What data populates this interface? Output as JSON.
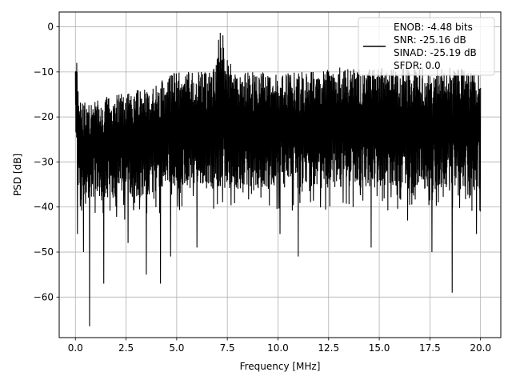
{
  "chart_data": {
    "type": "line",
    "xlabel": "Frequency [MHz]",
    "ylabel": "PSD [dB]",
    "xlim": [
      -0.8,
      21.0
    ],
    "ylim": [
      -69.0,
      3.3
    ],
    "xticks": [
      0.0,
      2.5,
      5.0,
      7.5,
      10.0,
      12.5,
      15.0,
      17.5,
      20.0
    ],
    "xtick_labels": [
      "0.0",
      "2.5",
      "5.0",
      "7.5",
      "10.0",
      "12.5",
      "15.0",
      "17.5",
      "20.0"
    ],
    "yticks": [
      0,
      -10,
      -20,
      -30,
      -40,
      -50,
      -60
    ],
    "ytick_labels": [
      "0",
      "−10",
      "−20",
      "−30",
      "−40",
      "−50",
      "−60"
    ],
    "grid": true,
    "legend_position": "top-right",
    "legend_lines": [
      "ENOB: -4.48 bits",
      "SNR: -25.16 dB",
      "SINAD: -25.19 dB",
      "SFDR: 0.0"
    ],
    "series": [
      {
        "color": "#000000",
        "envelope_x": [
          0.0,
          0.05,
          0.1,
          0.3,
          1.0,
          2.0,
          3.0,
          4.0,
          4.5,
          5.0,
          6.0,
          6.8,
          7.0,
          7.2,
          7.4,
          7.8,
          9.0,
          10.0,
          11.0,
          12.0,
          13.0,
          14.0,
          15.0,
          16.0,
          17.0,
          18.0,
          19.0,
          20.0
        ],
        "upper": [
          -7,
          -3,
          -12,
          -17,
          -16,
          -15,
          -14,
          -13,
          -11,
          -10,
          -10,
          -10,
          -4,
          0,
          -4,
          -10,
          -10,
          -10,
          -10,
          -10,
          -9,
          -9,
          -9,
          -9,
          -9,
          -9,
          -9,
          -10
        ],
        "lower": [
          -20,
          -30,
          -40,
          -38,
          -38,
          -38,
          -38,
          -37,
          -36,
          -36,
          -36,
          -36,
          -36,
          -36,
          -36,
          -36,
          -36,
          -36,
          -36,
          -36,
          -36,
          -36,
          -36,
          -36,
          -36,
          -36,
          -36,
          -36
        ],
        "deep_dips": [
          {
            "x": 0.1,
            "y": -46
          },
          {
            "x": 0.4,
            "y": -50
          },
          {
            "x": 0.7,
            "y": -66.5
          },
          {
            "x": 1.4,
            "y": -57
          },
          {
            "x": 2.6,
            "y": -48
          },
          {
            "x": 3.5,
            "y": -55
          },
          {
            "x": 4.2,
            "y": -57
          },
          {
            "x": 4.7,
            "y": -51
          },
          {
            "x": 6.0,
            "y": -49
          },
          {
            "x": 10.1,
            "y": -46
          },
          {
            "x": 11.0,
            "y": -51
          },
          {
            "x": 14.6,
            "y": -49
          },
          {
            "x": 16.4,
            "y": -43
          },
          {
            "x": 17.6,
            "y": -50
          },
          {
            "x": 18.6,
            "y": -59
          },
          {
            "x": 19.8,
            "y": -46
          }
        ]
      }
    ]
  }
}
